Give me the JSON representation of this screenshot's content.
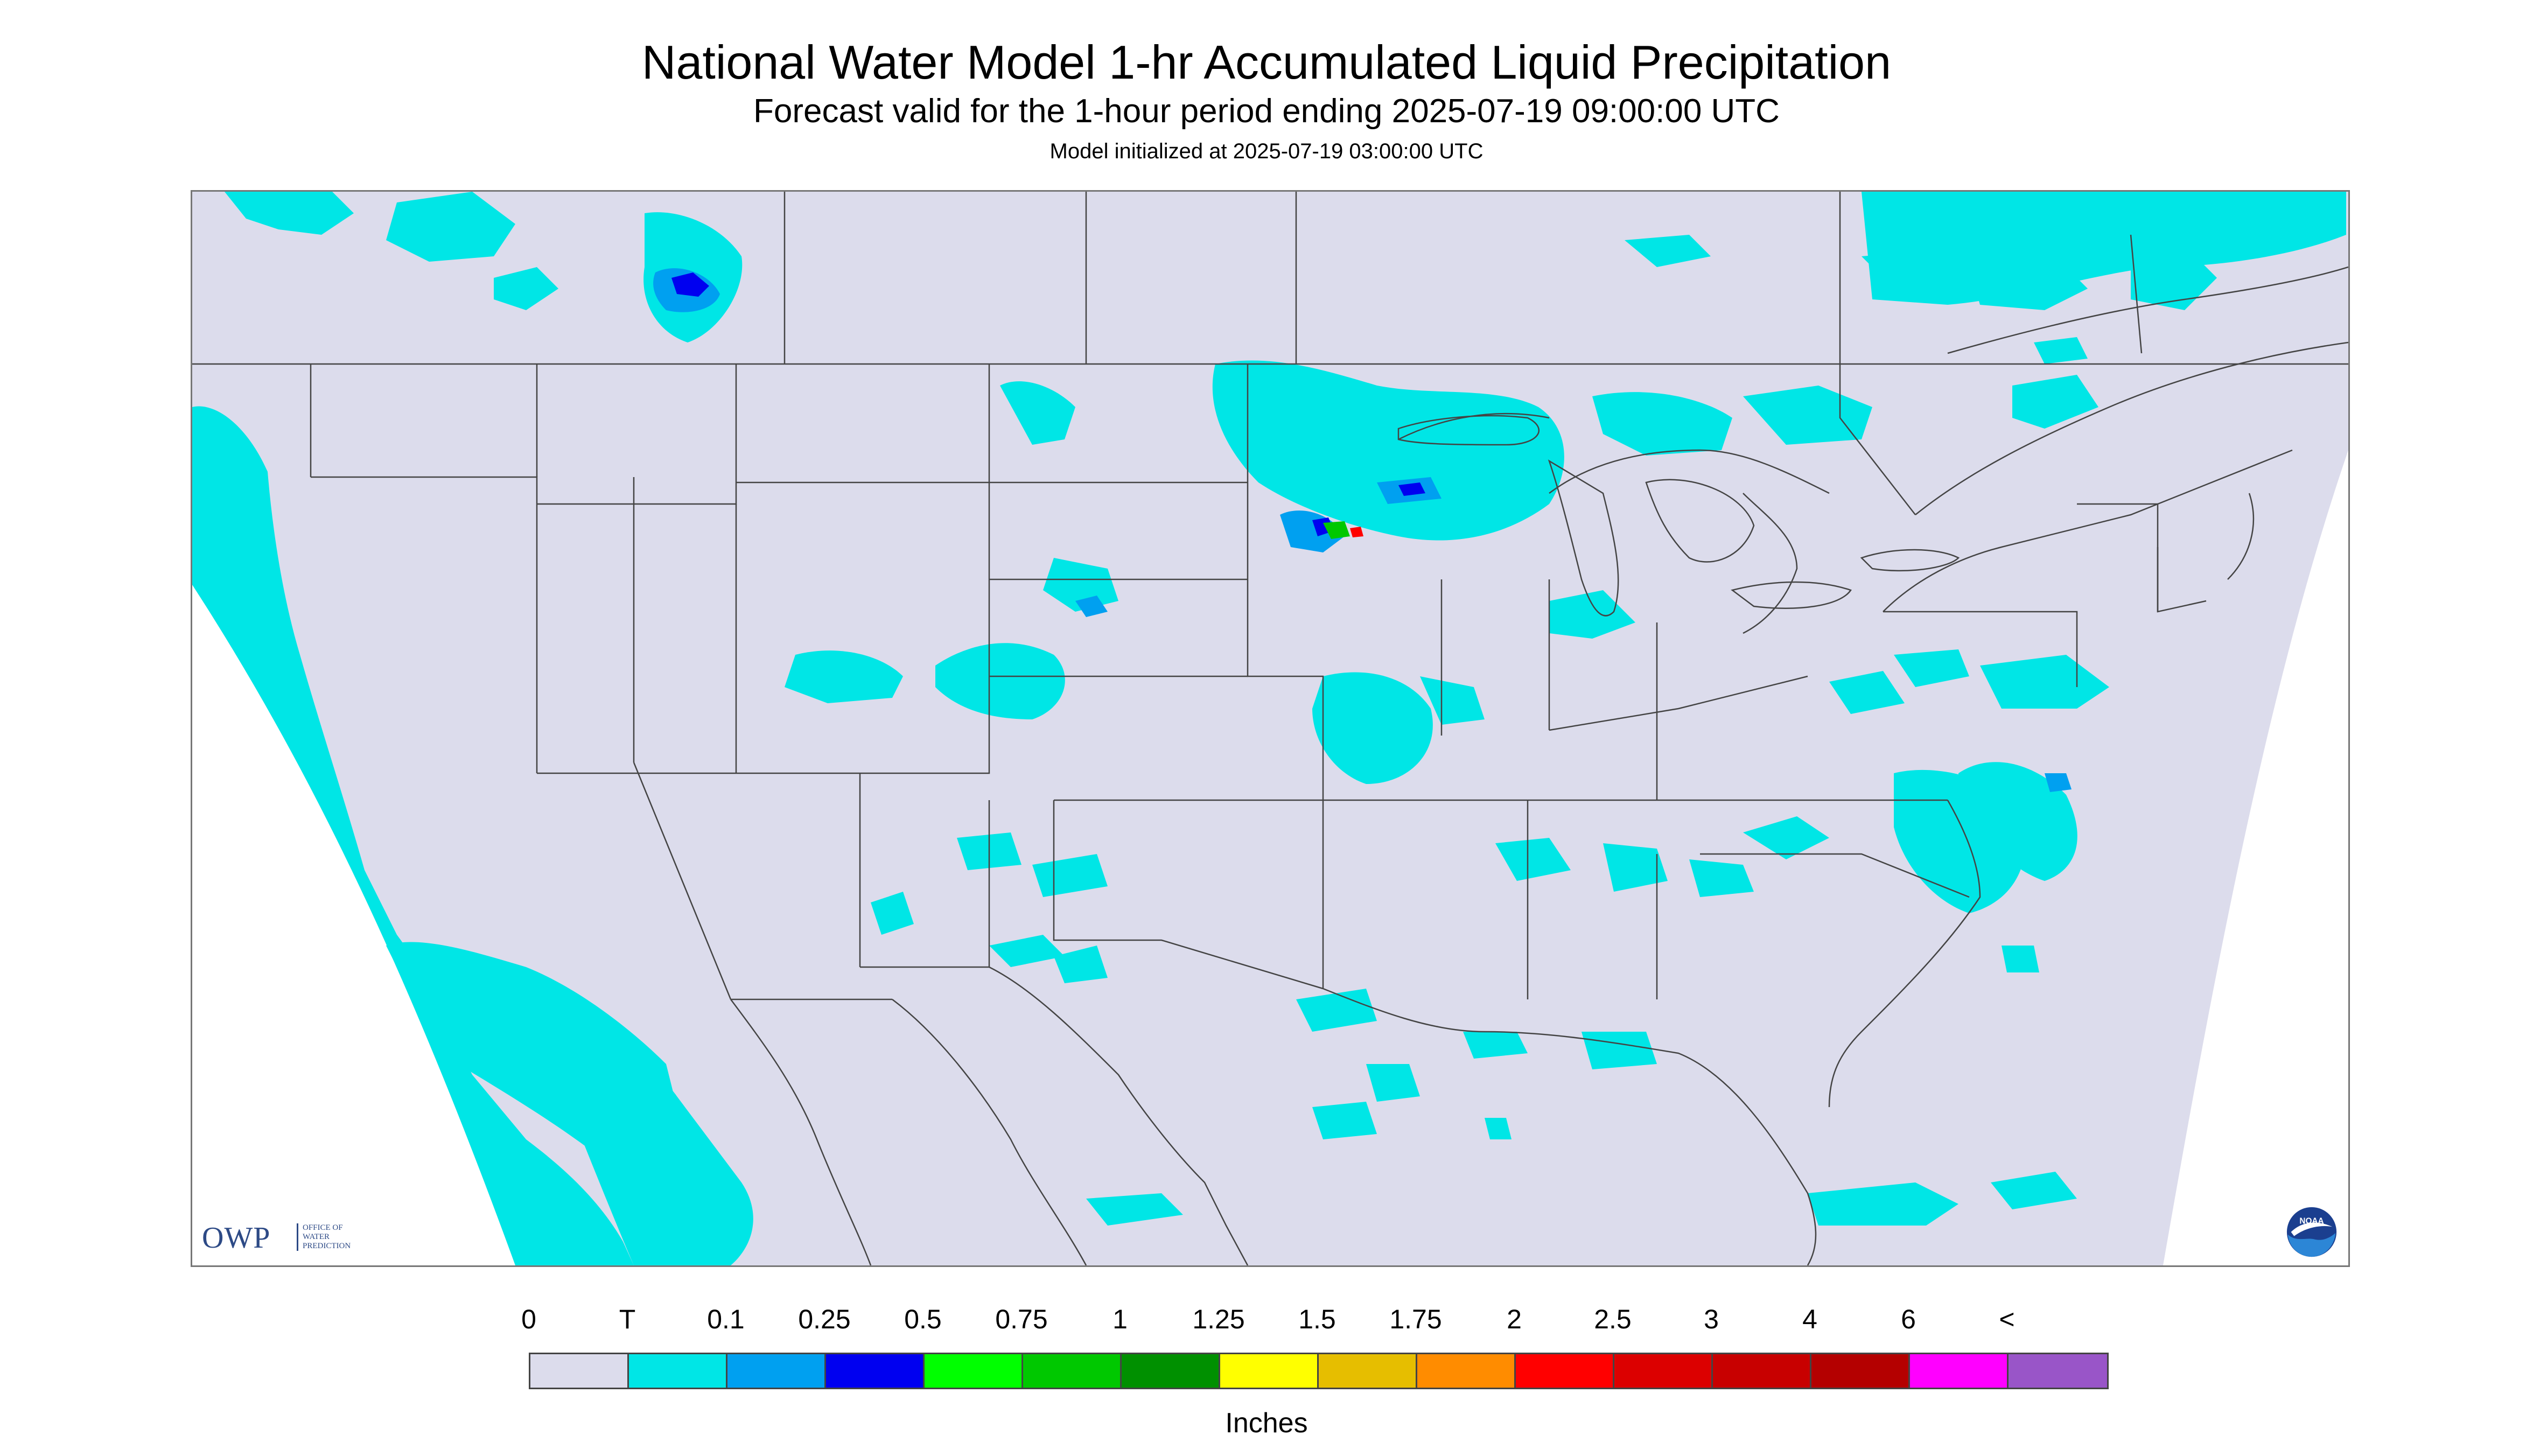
{
  "header": {
    "title": "National Water Model 1-hr Accumulated Liquid Precipitation",
    "subtitle": "Forecast valid for the 1-hour period ending 2025-07-19 09:00:00 UTC",
    "init_line": "Model initialized at 2025-07-19 03:00:00 UTC"
  },
  "map": {
    "background_color": "#dcdcec",
    "outside_domain_color": "#ffffff",
    "boundary_color": "#444444",
    "region": "Contiguous United States"
  },
  "logos": {
    "owp_letters": "OWP",
    "owp_text": "OFFICE OF\nWATER\nPREDICTION",
    "noaa_text": "NOAA"
  },
  "legend": {
    "tick_labels": [
      "0",
      "T",
      "0.1",
      "0.25",
      "0.5",
      "0.75",
      "1",
      "1.25",
      "1.5",
      "1.75",
      "2",
      "2.5",
      "3",
      "4",
      "6",
      "<"
    ],
    "colors": [
      "#dcdcec",
      "#00e6e6",
      "#00a0f0",
      "#0000f0",
      "#00ff00",
      "#00c800",
      "#009000",
      "#ffff00",
      "#e6be00",
      "#ff8c00",
      "#ff0000",
      "#dc0000",
      "#c80000",
      "#b40000",
      "#ff00ff",
      "#9955c8"
    ],
    "units": "Inches"
  }
}
